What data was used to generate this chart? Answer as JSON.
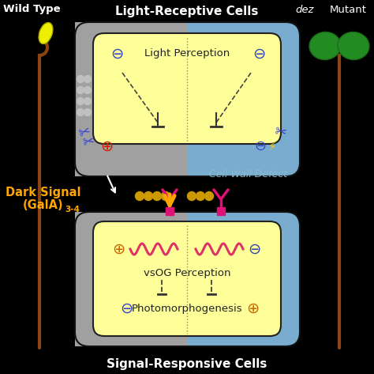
{
  "bg_color": "#000000",
  "title_top": "Light-Receptive Cells",
  "title_bottom": "Signal-Responsive Cells",
  "label_wild": "Wild Type",
  "label_mutant_italic": "dez",
  "label_mutant_rest": "Mutant",
  "label_cell_wall": "Cell Wall Defect",
  "label_dark_signal": "Dark Signal",
  "label_gala": "(GalA)",
  "label_gala_sub": "3-4",
  "label_light_perception": "Light Perception",
  "label_vsog": "vsOG Perception",
  "label_photo": "Photomorphogenesis",
  "outer_gray": "#a0a0a0",
  "outer_blue": "#7aaccf",
  "inner_yellow": "#ffff99",
  "dark_signal_color": "#FFA500",
  "receptor_color": "#dd1177",
  "scissors_color": "#3344cc",
  "plus_color_red": "#cc2200",
  "minus_color_blue": "#3344cc",
  "plus_color_orange": "#cc6600",
  "minus_color_dark": "#3344aa",
  "wavy_color": "#dd3366",
  "lightning_color": "#ffcc00",
  "wild_type_stem": "#8B4513",
  "wild_type_bud": "#eeee00",
  "mutant_leaf": "#228B22",
  "mutant_stem": "#8B4513",
  "text_white": "#ffffff",
  "text_cyan": "#88bbcc",
  "oligomer_gray": "#aaaaaa",
  "oligomer_yellow": "#ccaa00"
}
